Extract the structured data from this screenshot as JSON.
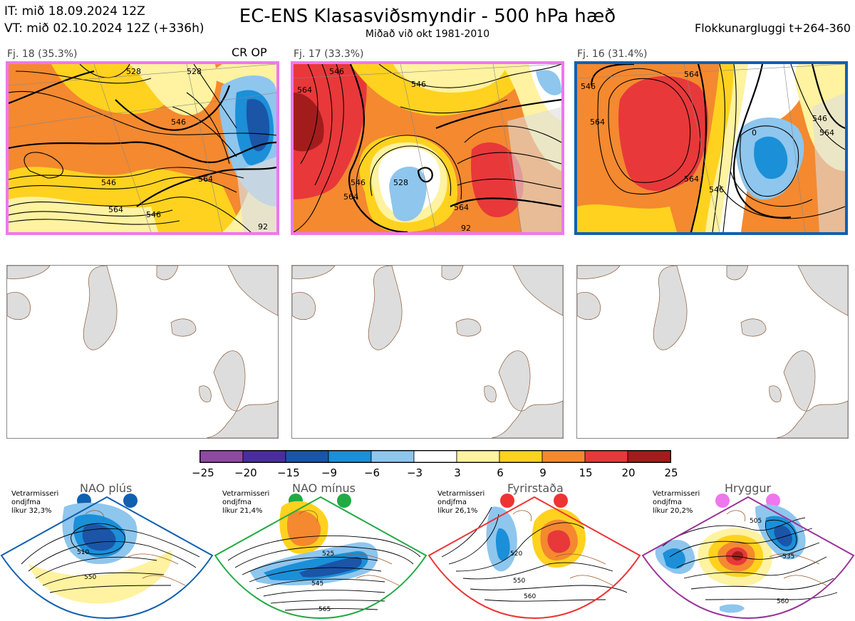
{
  "header": {
    "line_it": "IT: mið 18.09.2024 12Z",
    "line_vt": "VT: mið 02.10.2024 12Z  (+336h)",
    "title": "EC-ENS Klasasviðsmyndir - 500 hPa hæð",
    "subtitle": "Miðað við okt 1981-2010",
    "window": "Flokkunargluggi t+264-360"
  },
  "clusters": [
    {
      "label": "Fj. 18 (35.3%)",
      "tag": "CR OP",
      "border": "#ee77ee",
      "contours": [
        "528",
        "546",
        "546",
        "564",
        "564",
        "546",
        "528",
        "92"
      ]
    },
    {
      "label": "Fj. 17 (33.3%)",
      "tag": "",
      "border": "#ee77ee",
      "contours": [
        "546",
        "546",
        "564",
        "528",
        "546",
        "564",
        "564",
        "92"
      ]
    },
    {
      "label": "Fj. 16 (31.4%)",
      "tag": "",
      "border": "#1060b0",
      "contours": [
        "546",
        "564",
        "564",
        "546",
        "546",
        "564",
        "564",
        "0"
      ]
    }
  ],
  "colorbar": {
    "ticks": [
      "−25",
      "−20",
      "−15",
      "−9",
      "−6",
      "−3",
      "3",
      "6",
      "9",
      "15",
      "20",
      "25"
    ],
    "colors": [
      "#8d4aa0",
      "#4a2f9a",
      "#1a55a8",
      "#1b8fd8",
      "#8ec6ee",
      "#ffffff",
      "#fff2a0",
      "#ffd21f",
      "#f4892f",
      "#e8383a",
      "#a31c1c"
    ]
  },
  "regimes": [
    {
      "name": "NAO plús",
      "note": [
        "Vetrarmisseri",
        "ondjfma",
        "líkur 32,3%"
      ],
      "color": "#1060b0",
      "dot": "#1060b0",
      "labels": [
        "510",
        "550"
      ]
    },
    {
      "name": "NAO mínus",
      "note": [
        "Vetrarmisseri",
        "ondjfma",
        "líkur 21,4%"
      ],
      "color": "#22aa44",
      "dot": "#22aa44",
      "labels": [
        "525",
        "545",
        "565"
      ]
    },
    {
      "name": "Fyrirstaða",
      "note": [
        "Vetrarmisseri",
        "ondjfma",
        "líkur 26,1%"
      ],
      "color": "#ee3333",
      "dot": "#ee3333",
      "labels": [
        "520",
        "550",
        "560"
      ]
    },
    {
      "name": "Hryggur",
      "note": [
        "Vetrarmisseri",
        "ondjfma",
        "líkur 20,2%"
      ],
      "color": "#993399",
      "dot": "#ee77ee",
      "labels": [
        "505",
        "535",
        "560"
      ]
    }
  ]
}
